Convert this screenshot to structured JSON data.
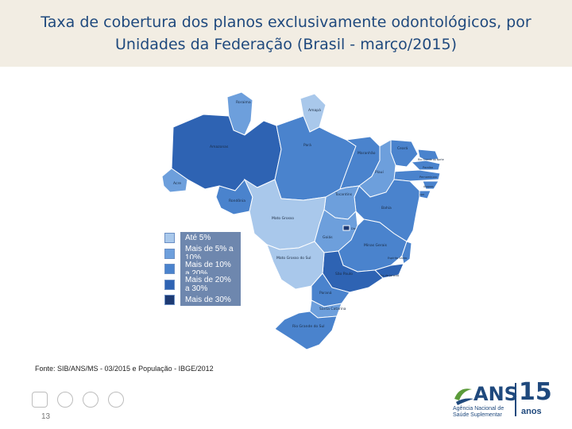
{
  "title": "Taxa de cobertura dos planos exclusivamente odontológicos, por Unidades da Federação (Brasil - março/2015)",
  "colors": {
    "ate5": "#a9c8eb",
    "5a10": "#6d9fdc",
    "10a20": "#4a83cd",
    "20a30": "#2e63b3",
    "mais30": "#1d3a73",
    "title": "#1f497d",
    "band": "#f2ede3"
  },
  "legend": [
    {
      "label": "Até 5%",
      "color": "#a9c8eb"
    },
    {
      "label": "Mais de 5% a 10%",
      "color": "#6d9fdc"
    },
    {
      "label": "Mais de 10% a 20%",
      "color": "#4a83cd"
    },
    {
      "label": "Mais de 20% a 30%",
      "color": "#2e63b3"
    },
    {
      "label": "Mais de 30%",
      "color": "#1d3a73"
    }
  ],
  "states": [
    {
      "name": "Roraima",
      "class": "5a10"
    },
    {
      "name": "Amapá",
      "class": "ate5"
    },
    {
      "name": "Amazonas",
      "class": "20a30"
    },
    {
      "name": "Pará",
      "class": "10a20"
    },
    {
      "name": "Maranhão",
      "class": "10a20"
    },
    {
      "name": "Ceará",
      "class": "10a20"
    },
    {
      "name": "Rio Grande do Norte",
      "class": "10a20"
    },
    {
      "name": "Paraíba",
      "class": "10a20"
    },
    {
      "name": "Pernambuco",
      "class": "10a20"
    },
    {
      "name": "Alagoas",
      "class": "10a20"
    },
    {
      "name": "Sergipe",
      "class": "10a20"
    },
    {
      "name": "Piauí",
      "class": "5a10"
    },
    {
      "name": "Bahia",
      "class": "10a20"
    },
    {
      "name": "Tocantins",
      "class": "5a10"
    },
    {
      "name": "Acre",
      "class": "5a10"
    },
    {
      "name": "Rondônia",
      "class": "10a20"
    },
    {
      "name": "Mato Grosso",
      "class": "ate5"
    },
    {
      "name": "Goiás",
      "class": "5a10"
    },
    {
      "name": "Distrito Federal",
      "class": "mais30"
    },
    {
      "name": "Minas Gerais",
      "class": "10a20"
    },
    {
      "name": "Espírito Santo",
      "class": "10a20"
    },
    {
      "name": "Rio de Janeiro",
      "class": "20a30"
    },
    {
      "name": "São Paulo",
      "class": "20a30"
    },
    {
      "name": "Mato Grosso do Sul",
      "class": "ate5"
    },
    {
      "name": "Paraná",
      "class": "10a20"
    },
    {
      "name": "Santa Catarina",
      "class": "5a10"
    },
    {
      "name": "Rio Grande do Sul",
      "class": "10a20"
    }
  ],
  "source": "Fonte: SIB/ANS/MS - 03/2015 e População - IBGE/2012",
  "page_number": "13",
  "logo": {
    "name": "ANS",
    "subtitle": "Agência Nacional de Saúde Suplementar",
    "years": "15",
    "years_label": "anos"
  }
}
